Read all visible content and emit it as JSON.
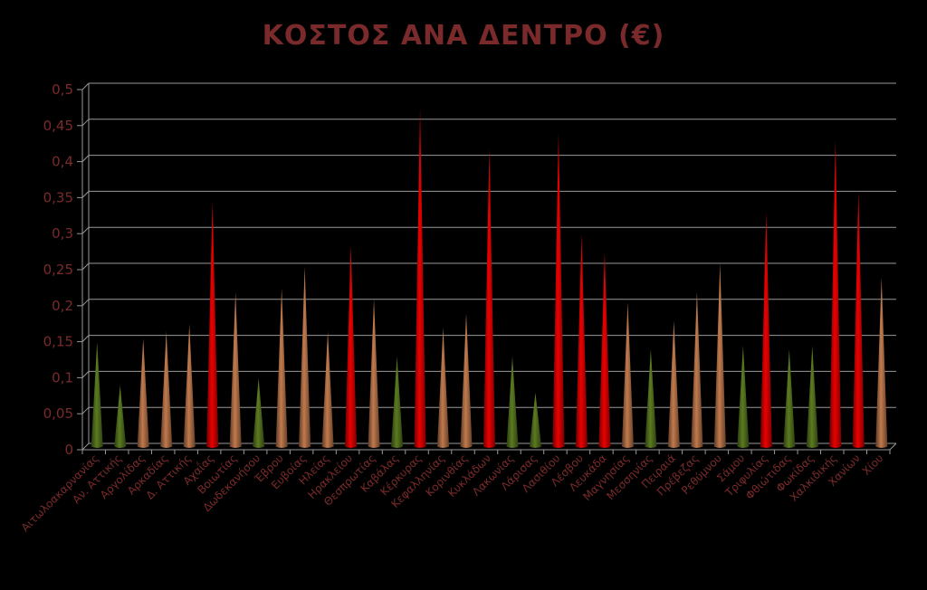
{
  "chart_data": {
    "type": "bar",
    "title": "ΚΟΣΤΟΣ ΑΝΑ ΔΕΝΤΡΟ (€)",
    "xlabel": "",
    "ylabel": "",
    "ylim": [
      0,
      0.5
    ],
    "yticks": [
      "0",
      "0,05",
      "0,1",
      "0,15",
      "0,2",
      "0,25",
      "0,3",
      "0,35",
      "0,4",
      "0,45",
      "0,5"
    ],
    "grid": true,
    "legend": "none",
    "colors": {
      "green": "#4f6b1c",
      "brown": "#a86a43",
      "red": "#cc0000",
      "text": "#7a2a2a",
      "grid": "#999999"
    },
    "categories": [
      "Αιτωλοακαρνανίας",
      "Αν. Αττικής",
      "Αργολίδας",
      "Αρκαδίας",
      "Δ. Αττικής",
      "Αχαΐας",
      "Βοιωτίας",
      "Δωδεκανήσου",
      "Έβρου",
      "Ευβοίας",
      "Ηλείας",
      "Ηρακλείου",
      "Θεσπρωτίας",
      "Καβάλας",
      "Κέρκυρας",
      "Κεφαλληνίας",
      "Κορινθίας",
      "Κυκλάδων",
      "Λακωνίας",
      "Λάρισας",
      "Λασιθίου",
      "Λέσβου",
      "Λευκάδα",
      "Μαγνησίας",
      "Μεσσηνίας",
      "Πειραιά",
      "Πρέβεζας",
      "Ρεθύμνου",
      "Σάμου",
      "Τριφυλίας",
      "Φθιώτιδας",
      "Φωκίδας",
      "Χαλκιδικής",
      "Χανίων",
      "Χίου"
    ],
    "values": [
      0.145,
      0.085,
      0.15,
      0.16,
      0.17,
      0.34,
      0.215,
      0.095,
      0.22,
      0.25,
      0.16,
      0.28,
      0.205,
      0.125,
      0.47,
      0.165,
      0.185,
      0.415,
      0.125,
      0.075,
      0.435,
      0.295,
      0.27,
      0.2,
      0.135,
      0.175,
      0.215,
      0.255,
      0.14,
      0.325,
      0.135,
      0.14,
      0.425,
      0.355,
      0.235
    ],
    "bar_colors": [
      "green",
      "green",
      "brown",
      "brown",
      "brown",
      "red",
      "brown",
      "green",
      "brown",
      "brown",
      "brown",
      "red",
      "brown",
      "green",
      "red",
      "brown",
      "brown",
      "red",
      "green",
      "green",
      "red",
      "red",
      "red",
      "brown",
      "green",
      "brown",
      "brown",
      "brown",
      "green",
      "red",
      "green",
      "green",
      "red",
      "red",
      "brown"
    ]
  }
}
